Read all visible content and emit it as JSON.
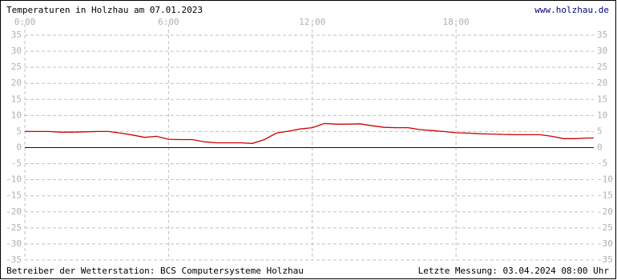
{
  "chart_data": {
    "type": "line",
    "title": "Temperaturen in Holzhau am 07.01.2023",
    "link": "www.holzhau.de",
    "footer_left": "Betreiber der Wetterstation: BCS Computersysteme Holzhau",
    "footer_right": "Letzte Messung: 03.04.2024 08:00 Uhr",
    "x": [
      0,
      0.5,
      1,
      1.5,
      2,
      2.5,
      3,
      3.5,
      4,
      4.5,
      5,
      5.5,
      6,
      6.5,
      7,
      7.5,
      8,
      8.5,
      9,
      9.5,
      10,
      10.5,
      11,
      11.5,
      12,
      12.5,
      13,
      13.5,
      14,
      14.5,
      15,
      15.5,
      16,
      16.5,
      17,
      17.5,
      18,
      18.5,
      19,
      19.5,
      20,
      20.5,
      21,
      21.5,
      22,
      22.5,
      23,
      23.5,
      23.75
    ],
    "series": [
      {
        "color": "#cc0000",
        "values": [
          5.0,
          5.0,
          5.0,
          4.8,
          4.8,
          4.9,
          5.0,
          5.0,
          4.5,
          3.9,
          3.2,
          3.5,
          2.6,
          2.5,
          2.5,
          1.8,
          1.5,
          1.5,
          1.5,
          1.3,
          2.5,
          4.5,
          5.1,
          5.8,
          6.2,
          7.5,
          7.3,
          7.3,
          7.4,
          6.8,
          6.3,
          6.2,
          6.2,
          5.6,
          5.3,
          5.0,
          4.6,
          4.5,
          4.3,
          4.2,
          4.1,
          4.0,
          4.0,
          4.0,
          3.5,
          2.8,
          2.8,
          3.0,
          3.0
        ]
      }
    ],
    "zero_line_color": "#000080",
    "xlim": [
      0,
      23.75
    ],
    "xticks": [
      {
        "value": 0,
        "label": "0:00"
      },
      {
        "value": 6,
        "label": "6:00"
      },
      {
        "value": 12,
        "label": "12:00"
      },
      {
        "value": 18,
        "label": "18:00"
      }
    ],
    "ylim": [
      -35,
      35
    ],
    "yticks": [
      -35,
      -30,
      -25,
      -20,
      -15,
      -10,
      -5,
      0,
      5,
      10,
      15,
      20,
      25,
      30,
      35
    ],
    "grid": true
  }
}
